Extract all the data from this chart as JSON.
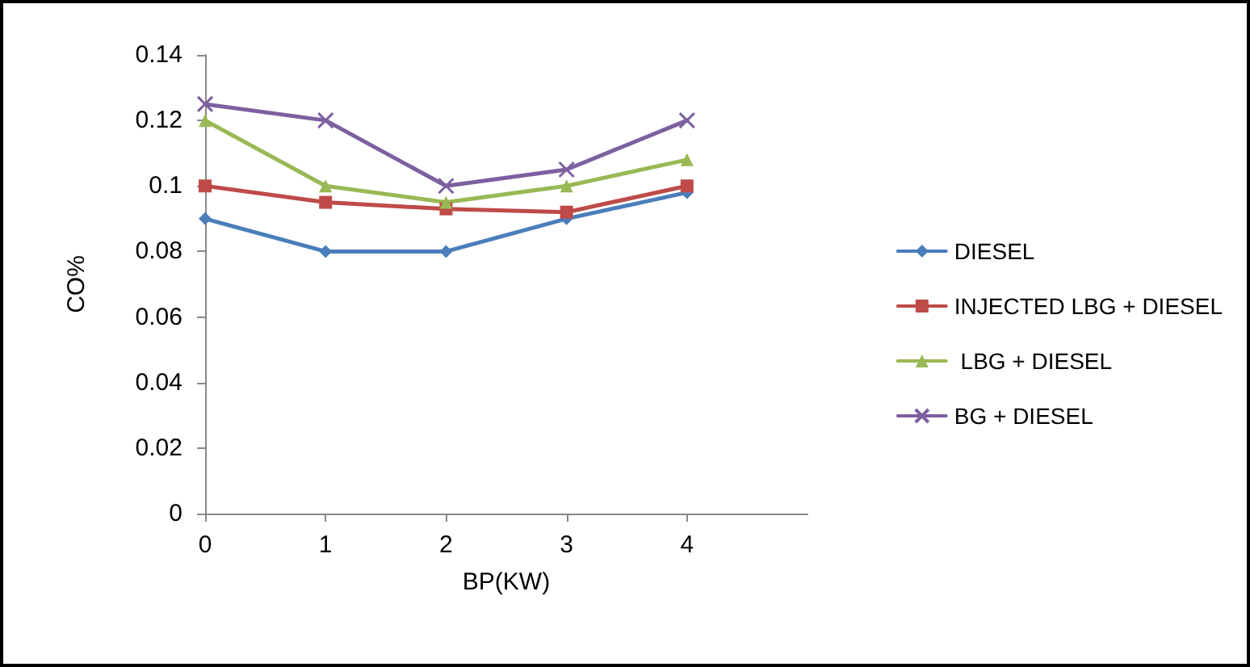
{
  "chart_data": {
    "type": "line",
    "xlabel": "BP(KW)",
    "ylabel": "CO%",
    "x": [
      0,
      1,
      2,
      3,
      4
    ],
    "series": [
      {
        "name": "DIESEL",
        "color": "#4a7ebb",
        "marker": "diamond",
        "values": [
          0.09,
          0.08,
          0.08,
          0.09,
          0.098
        ]
      },
      {
        "name": "INJECTED LBG + DIESEL",
        "color": "#be4b48",
        "marker": "square",
        "values": [
          0.1,
          0.095,
          0.093,
          0.092,
          0.1
        ]
      },
      {
        "name": " LBG + DIESEL",
        "color": "#98b954",
        "marker": "triangle",
        "values": [
          0.12,
          0.1,
          0.095,
          0.1,
          0.108
        ]
      },
      {
        "name": "BG + DIESEL",
        "color": "#7d60a0",
        "marker": "cross",
        "values": [
          0.125,
          0.12,
          0.1,
          0.105,
          0.12
        ]
      }
    ],
    "xlim": [
      0,
      5
    ],
    "xticks": [
      0,
      1,
      2,
      3,
      4
    ],
    "ylim": [
      0,
      0.14
    ],
    "yticks": [
      0,
      0.02,
      0.04,
      0.06,
      0.08,
      0.1,
      0.12,
      0.14
    ],
    "grid": false,
    "legend": "right",
    "line_style": "solid"
  }
}
